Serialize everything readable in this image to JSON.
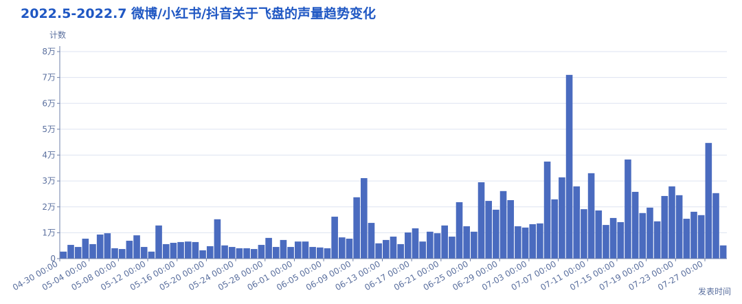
{
  "chart_data": {
    "type": "bar",
    "title": "2022.5-2022.7 微博/小红书/抖音关于飞盘的声量趋势变化",
    "y_axis_label": "计数",
    "x_axis_label": "发表时间",
    "color": "#4a6bbf",
    "grid": true,
    "ylim": [
      0,
      80000
    ],
    "yticks": [
      0,
      {
        "value": 10000,
        "label": "1万"
      },
      {
        "value": 20000,
        "label": "2万"
      },
      {
        "value": 30000,
        "label": "3万"
      },
      {
        "value": 40000,
        "label": "4万"
      },
      {
        "value": 50000,
        "label": "5万"
      },
      {
        "value": 60000,
        "label": "6万"
      },
      {
        "value": 70000,
        "label": "7万"
      },
      {
        "value": 80000,
        "label": "8万"
      }
    ],
    "categories": [
      "04-30 00:00",
      null,
      null,
      null,
      "05-04 00:00",
      null,
      null,
      null,
      "05-08 00:00",
      null,
      null,
      null,
      "05-12 00:00",
      null,
      null,
      null,
      "05-16 00:00",
      null,
      null,
      null,
      "05-20 00:00",
      null,
      null,
      null,
      "05-24 00:00",
      null,
      null,
      null,
      "05-28 00:00",
      null,
      null,
      null,
      "06-01 00:00",
      null,
      null,
      null,
      "06-05 00:00",
      null,
      null,
      null,
      "06-09 00:00",
      null,
      null,
      null,
      "06-13 00:00",
      null,
      null,
      null,
      "06-17 00:00",
      null,
      null,
      null,
      "06-21 00:00",
      null,
      null,
      null,
      "06-25 00:00",
      null,
      null,
      null,
      "06-29 00:00",
      null,
      null,
      null,
      "07-03 00:00",
      null,
      null,
      null,
      "07-07 00:00",
      null,
      null,
      null,
      "07-11 00:00",
      null,
      null,
      null,
      "07-15 00:00",
      null,
      null,
      null,
      "07-19 00:00",
      null,
      null,
      null,
      "07-23 00:00",
      null,
      null,
      null,
      "07-27 00:00",
      null,
      null
    ],
    "values": [
      2700,
      5300,
      4500,
      7700,
      5600,
      9300,
      9800,
      4000,
      3700,
      6900,
      9000,
      4500,
      2700,
      12800,
      5600,
      6100,
      6400,
      6600,
      6400,
      3200,
      4800,
      15200,
      5100,
      4500,
      4000,
      4000,
      3700,
      5300,
      8000,
      4500,
      7200,
      4500,
      6600,
      6600,
      4500,
      4300,
      4000,
      16200,
      8200,
      7700,
      23700,
      31100,
      13800,
      5900,
      7200,
      8500,
      5600,
      10100,
      11700,
      6600,
      10400,
      9800,
      12800,
      8500,
      21800,
      12500,
      10400,
      29500,
      22300,
      18900,
      26100,
      22600,
      12500,
      12000,
      13300,
      13600,
      37500,
      22900,
      31400,
      71000,
      27900,
      19100,
      33000,
      18600,
      13000,
      15700,
      14100,
      38300,
      25800,
      17600,
      19700,
      14400,
      24200,
      27900,
      24500,
      15400,
      18100,
      16800,
      44700,
      25300,
      5100
    ]
  }
}
